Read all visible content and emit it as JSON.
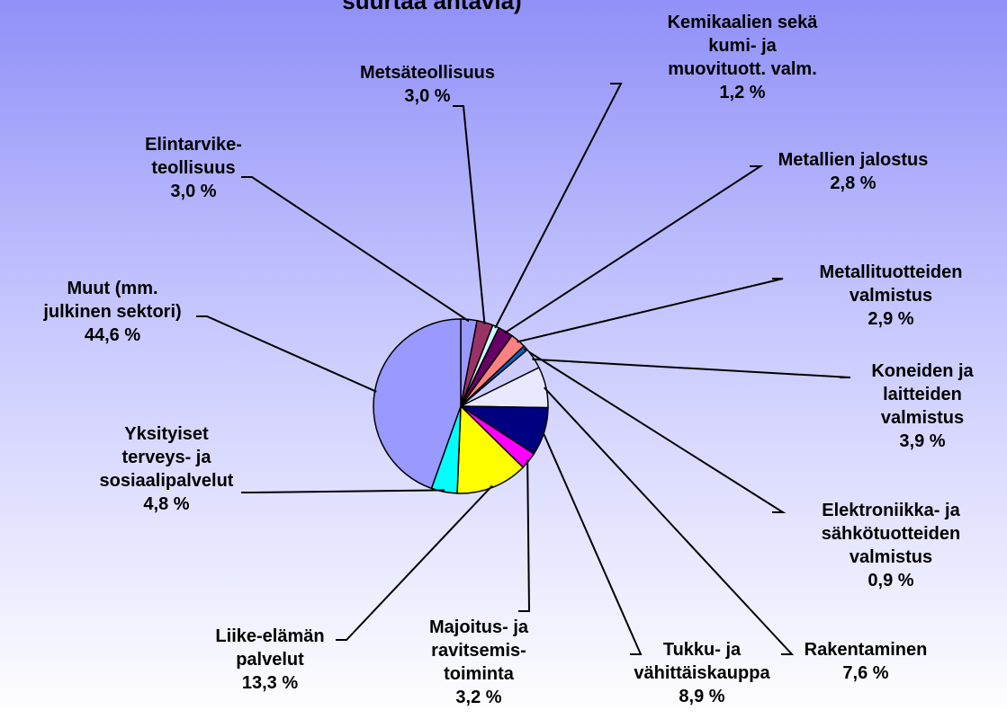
{
  "chart_data": {
    "type": "pie",
    "title": "suurtaa antavia)",
    "categories": [
      "Elintarvike-\nteollisuus",
      "Metsäteollisuus",
      "Kemikaalien sekä\nkumi- ja\nmuovituott. valm.",
      "Metallien jalostus",
      "Metallituotteiden\nvalmistus",
      "Elektroniikka- ja\nsähkötuotteiden\nvalmistus",
      "Koneiden ja\nlaitteiden\nvalmistus",
      "Rakentaminen",
      "Tukku- ja\nvähittäiskauppa",
      "Majoitus- ja\nravitsemis-\ntoiminta",
      "Liike-elämän\npalvelut",
      "Yksityiset\nterveys- ja\nsosiaalipalvelut",
      "Muut (mm.\njulkinen sektori)"
    ],
    "values": [
      3.0,
      3.0,
      1.2,
      2.8,
      2.9,
      0.9,
      3.9,
      7.6,
      8.9,
      3.2,
      13.3,
      4.8,
      44.6
    ],
    "value_labels": [
      "3,0 %",
      "3,0 %",
      "1,2 %",
      "2,8 %",
      "2,9 %",
      "0,9 %",
      "3,9 %",
      "7,6 %",
      "8,9 %",
      "3,2 %",
      "13,3 %",
      "4,8 %",
      "44,6 %"
    ],
    "colors": [
      "#9999ff",
      "#993366",
      "#ccffff",
      "#660066",
      "#ff8080",
      "#0066cc",
      "#ccccff",
      "#e8e8ff",
      "#000080",
      "#ff00ff",
      "#ffff00",
      "#00ffff",
      "#9999ff"
    ]
  }
}
